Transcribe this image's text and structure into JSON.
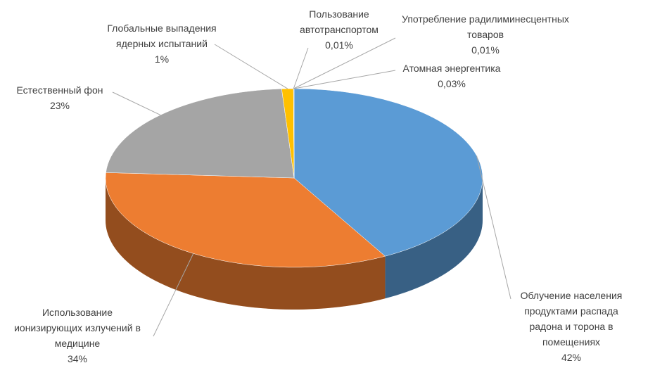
{
  "chart_data": {
    "type": "pie",
    "categories": [
      "Облучение населения продуктами распада радона и торона в помещениях",
      "Использование ионизирующих излучений в медицине",
      "Естественный фон",
      "Глобальные выпадения ядерных испытаний",
      "Пользование автотранспортом",
      "Употребление радилиминесцентных товаров",
      "Атомная энергентика"
    ],
    "values": [
      42,
      34,
      23,
      1,
      0.01,
      0.01,
      0.03
    ],
    "value_labels": [
      "42%",
      "34%",
      "23%",
      "1%",
      "0,01%",
      "0,01%",
      "0,03%"
    ],
    "colors": [
      "#5b9bd5",
      "#ed7d31",
      "#a5a5a5",
      "#ffc000",
      "#4472c4",
      "#70ad47",
      "#264478"
    ]
  }
}
